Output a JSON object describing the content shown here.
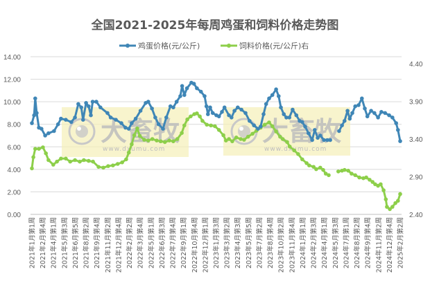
{
  "chart_data": {
    "type": "line",
    "title": "全国2021-2025年每周鸡蛋和饲料价格走势图",
    "legend": {
      "position": "top",
      "entries": [
        {
          "name": "鸡蛋价格(元/公斤)",
          "color": "#3f86b6",
          "axis": "left"
        },
        {
          "name": "饲料价格(元/公斤)右",
          "color": "#8dcf4a",
          "axis": "right"
        }
      ]
    },
    "y_left": {
      "min": 0,
      "max": 14,
      "step": 2,
      "ticks": [
        "0.00",
        "2.00",
        "4.00",
        "6.00",
        "8.00",
        "10.00",
        "12.00",
        "14.00"
      ]
    },
    "y_right": {
      "min": 2.4,
      "max": 4.4,
      "step": 0.5,
      "ticks": [
        "2.40",
        "2.90",
        "3.40",
        "3.90",
        "4.40"
      ]
    },
    "grid": true,
    "x_tick_labels": [
      "2021年1月第1周",
      "2021年2月第4周",
      "2021年4月第1周",
      "2021年5月第3周",
      "2021年6月第5周",
      "2021年8月第2周",
      "2021年9月第4周",
      "2021年11月第2周",
      "2021年12月第4周",
      "2022年2月第2周",
      "2022年3月第4周",
      "2022年5月第1周",
      "2022年6月第3周",
      "2022年7月第4周",
      "2022年9月第1周",
      "2022年10月第4周",
      "2022年12月第1周",
      "2023年1月第3周",
      "2023年3月第2周",
      "2023年4月第3周",
      "2023年5月第5周",
      "2023年7月第2周",
      "2023年8月第4周",
      "2023年10月第2周",
      "2023年11月第4周",
      "2024年1月第1周",
      "2024年2月第3周",
      "2024年4月第1周",
      "2024年5月第3周",
      "2024年7月第1周",
      "2024年8月第2周",
      "2024年9月第4周",
      "2024年11月第2周",
      "2024年12月第4周",
      "2025年2月第2周"
    ],
    "series": [
      {
        "name": "鸡蛋价格(元/公斤)",
        "axis": "left",
        "points_note": "[position 0..1 along x-axis, value]; null marks a gap",
        "points": [
          [
            0.0,
            8.1
          ],
          [
            0.006,
            8.8
          ],
          [
            0.009,
            10.3
          ],
          [
            0.013,
            9.0
          ],
          [
            0.019,
            7.7
          ],
          [
            0.026,
            7.6
          ],
          [
            0.036,
            7.0
          ],
          [
            0.045,
            7.2
          ],
          [
            0.06,
            7.4
          ],
          [
            0.071,
            8.0
          ],
          [
            0.079,
            8.5
          ],
          [
            0.092,
            8.4
          ],
          [
            0.107,
            8.2
          ],
          [
            0.117,
            8.6
          ],
          [
            0.126,
            9.8
          ],
          [
            0.134,
            9.5
          ],
          [
            0.139,
            8.4
          ],
          [
            0.147,
            9.9
          ],
          [
            0.154,
            9.6
          ],
          [
            0.16,
            8.8
          ],
          [
            0.165,
            10.0
          ],
          [
            0.175,
            10.0
          ],
          [
            0.186,
            9.5
          ],
          [
            0.205,
            9.0
          ],
          [
            0.214,
            8.6
          ],
          [
            0.228,
            8.4
          ],
          [
            0.243,
            8.1
          ],
          [
            0.254,
            7.7
          ],
          [
            0.263,
            7.6
          ],
          [
            0.271,
            8.1
          ],
          [
            0.282,
            8.5
          ],
          [
            0.295,
            9.2
          ],
          [
            0.309,
            9.9
          ],
          [
            0.316,
            10.0
          ],
          [
            0.326,
            9.4
          ],
          [
            0.335,
            8.6
          ],
          [
            0.344,
            8.0
          ],
          [
            0.356,
            7.6
          ],
          [
            0.365,
            8.6
          ],
          [
            0.376,
            9.6
          ],
          [
            0.384,
            9.5
          ],
          [
            0.393,
            10.0
          ],
          [
            0.403,
            10.5
          ],
          [
            0.408,
            11.4
          ],
          [
            0.414,
            10.6
          ],
          [
            0.421,
            11.2
          ],
          [
            0.433,
            11.7
          ],
          [
            0.44,
            11.6
          ],
          [
            0.448,
            11.2
          ],
          [
            0.459,
            10.9
          ],
          [
            0.469,
            10.5
          ],
          [
            0.474,
            9.6
          ],
          [
            0.478,
            8.9
          ],
          [
            0.484,
            9.5
          ],
          [
            0.491,
            9.0
          ],
          [
            0.501,
            8.8
          ],
          [
            0.508,
            8.7
          ],
          [
            0.516,
            9.1
          ],
          [
            0.523,
            9.5
          ],
          [
            0.535,
            8.8
          ],
          [
            0.542,
            8.6
          ],
          [
            0.55,
            9.2
          ],
          [
            0.559,
            9.5
          ],
          [
            0.569,
            9.3
          ],
          [
            0.58,
            9.0
          ],
          [
            0.591,
            8.3
          ],
          [
            0.603,
            7.9
          ],
          [
            0.614,
            7.6
          ],
          [
            0.621,
            7.8
          ],
          [
            0.629,
            8.9
          ],
          [
            0.636,
            9.8
          ],
          [
            0.644,
            10.3
          ],
          [
            0.653,
            10.6
          ],
          [
            0.663,
            11.1
          ],
          [
            0.67,
            10.5
          ],
          [
            0.676,
            9.5
          ],
          [
            0.684,
            8.9
          ],
          [
            0.691,
            8.6
          ],
          [
            0.699,
            8.6
          ],
          [
            0.708,
            9.3
          ],
          [
            0.718,
            8.8
          ],
          [
            0.727,
            8.3
          ],
          [
            0.734,
            8.2
          ],
          [
            0.742,
            7.8
          ],
          [
            0.751,
            7.2
          ],
          [
            0.761,
            6.6
          ],
          [
            0.768,
            7.5
          ],
          [
            0.776,
            6.8
          ],
          [
            0.783,
            7.0
          ],
          [
            0.793,
            6.6
          ],
          [
            0.802,
            6.6
          ],
          [
            0.81,
            6.6
          ],
          null,
          [
            0.834,
            7.4
          ],
          [
            0.842,
            7.9
          ],
          [
            0.849,
            8.3
          ],
          [
            0.857,
            9.2
          ],
          [
            0.863,
            8.5
          ],
          [
            0.87,
            9.0
          ],
          [
            0.878,
            9.6
          ],
          [
            0.887,
            9.7
          ],
          [
            0.896,
            10.3
          ],
          [
            0.904,
            9.4
          ],
          [
            0.911,
            8.7
          ],
          [
            0.921,
            9.2
          ],
          [
            0.93,
            9.0
          ],
          [
            0.94,
            8.6
          ],
          [
            0.949,
            9.1
          ],
          [
            0.959,
            9.0
          ],
          [
            0.97,
            8.8
          ],
          [
            0.979,
            8.6
          ],
          [
            0.989,
            8.1
          ],
          [
            0.994,
            7.5
          ],
          [
            1.0,
            6.5
          ]
        ]
      },
      {
        "name": "饲料价格(元/公斤)右",
        "axis": "right",
        "points_note": "[position 0..1 along x-axis, value]; null marks a gap",
        "points": [
          [
            0.0,
            3.01
          ],
          [
            0.004,
            3.16
          ],
          [
            0.009,
            3.27
          ],
          [
            0.019,
            3.27
          ],
          [
            0.03,
            3.29
          ],
          [
            0.038,
            3.21
          ],
          [
            0.045,
            3.12
          ],
          [
            0.058,
            3.06
          ],
          [
            0.068,
            3.1
          ],
          [
            0.079,
            3.14
          ],
          [
            0.092,
            3.14
          ],
          [
            0.104,
            3.1
          ],
          [
            0.117,
            3.12
          ],
          [
            0.13,
            3.1
          ],
          [
            0.141,
            3.12
          ],
          [
            0.154,
            3.11
          ],
          [
            0.166,
            3.1
          ],
          [
            0.181,
            3.03
          ],
          [
            0.194,
            3.02
          ],
          [
            0.207,
            3.04
          ],
          [
            0.22,
            3.05
          ],
          [
            0.233,
            3.07
          ],
          [
            0.245,
            3.09
          ],
          [
            0.256,
            3.13
          ],
          [
            0.263,
            3.22
          ],
          [
            0.271,
            3.33
          ],
          [
            0.278,
            3.45
          ],
          [
            0.286,
            3.54
          ],
          [
            0.293,
            3.44
          ],
          [
            0.305,
            3.39
          ],
          [
            0.316,
            3.38
          ],
          [
            0.327,
            3.4
          ],
          [
            0.339,
            3.38
          ],
          [
            0.35,
            3.37
          ],
          [
            0.361,
            3.36
          ],
          [
            0.373,
            3.38
          ],
          [
            0.384,
            3.37
          ],
          [
            0.395,
            3.4
          ],
          [
            0.407,
            3.48
          ],
          [
            0.414,
            3.58
          ],
          [
            0.422,
            3.66
          ],
          [
            0.431,
            3.7
          ],
          [
            0.441,
            3.73
          ],
          [
            0.448,
            3.74
          ],
          [
            0.456,
            3.7
          ],
          [
            0.463,
            3.64
          ],
          [
            0.475,
            3.59
          ],
          [
            0.486,
            3.58
          ],
          [
            0.497,
            3.57
          ],
          [
            0.508,
            3.52
          ],
          [
            0.52,
            3.45
          ],
          [
            0.527,
            3.38
          ],
          [
            0.535,
            3.4
          ],
          [
            0.544,
            3.37
          ],
          [
            0.555,
            3.42
          ],
          [
            0.567,
            3.4
          ],
          [
            0.576,
            3.39
          ],
          [
            0.587,
            3.43
          ],
          [
            0.599,
            3.47
          ],
          [
            0.61,
            3.51
          ],
          [
            0.621,
            3.55
          ],
          [
            0.632,
            3.59
          ],
          [
            0.644,
            3.62
          ],
          [
            0.653,
            3.57
          ],
          [
            0.663,
            3.5
          ],
          [
            0.674,
            3.43
          ],
          [
            0.681,
            3.4
          ],
          [
            0.693,
            3.36
          ],
          [
            0.7,
            3.3
          ],
          [
            0.712,
            3.25
          ],
          [
            0.723,
            3.2
          ],
          [
            0.734,
            3.13
          ],
          [
            0.746,
            3.08
          ],
          [
            0.753,
            3.05
          ],
          [
            0.765,
            3.03
          ],
          [
            0.772,
            3.0
          ],
          [
            0.783,
            3.02
          ],
          [
            0.791,
            2.99
          ],
          [
            0.798,
            2.94
          ],
          [
            0.806,
            2.92
          ],
          null,
          [
            0.832,
            2.97
          ],
          [
            0.842,
            2.98
          ],
          [
            0.849,
            2.99
          ],
          [
            0.859,
            2.98
          ],
          [
            0.868,
            2.94
          ],
          [
            0.878,
            2.92
          ],
          [
            0.889,
            2.89
          ],
          [
            0.9,
            2.88
          ],
          [
            0.908,
            2.89
          ],
          [
            0.917,
            2.86
          ],
          [
            0.925,
            2.83
          ],
          [
            0.932,
            2.8
          ],
          [
            0.94,
            2.78
          ],
          [
            0.947,
            2.8
          ],
          [
            0.955,
            2.72
          ],
          [
            0.961,
            2.6
          ],
          [
            0.964,
            2.5
          ],
          [
            0.972,
            2.47
          ],
          [
            0.979,
            2.5
          ],
          [
            0.987,
            2.55
          ],
          [
            0.994,
            2.58
          ],
          [
            1.0,
            2.67
          ]
        ]
      }
    ],
    "watermarks": [
      {
        "text": "大畜牧",
        "url": "www.dxumu.com"
      },
      {
        "text": "大畜牧",
        "url": "www.dxumu.com"
      }
    ]
  }
}
